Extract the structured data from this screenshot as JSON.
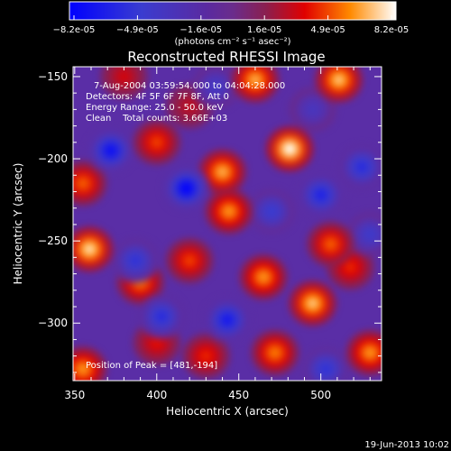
{
  "chart_data": {
    "type": "heatmap",
    "title": "Reconstructed RHESSI Image",
    "xlabel": "Heliocentric X (arcsec)",
    "ylabel": "Heliocentric Y (arcsec)",
    "xlim": [
      349,
      537
    ],
    "ylim": [
      -335,
      -144
    ],
    "x_ticks": [
      350,
      400,
      450,
      500
    ],
    "y_ticks": [
      -150,
      -200,
      -250,
      -300
    ],
    "colorbar": {
      "ticks": [
        "-8.2e-05",
        "-4.9e-05",
        "-1.6e-05",
        "1.6e-05",
        "4.9e-05",
        "8.2e-05"
      ],
      "units": "(photons cm⁻² s⁻¹ asec⁻²)",
      "range": [
        -8.2e-05,
        8.2e-05
      ]
    },
    "annotations": {
      "time": "7-Aug-2004 03:59:54.000 to 04:04:28.000",
      "detectors": "Detectors: 4F 5F 6F 7F 8F, Att 0",
      "energy": "Energy Range: 25.0 - 50.0 keV",
      "clean": "Clean    Total counts: 3.66E+03",
      "peak": "Position of Peak = [481,-194]"
    },
    "footer_date": "19-Jun-2013 10:02",
    "sources": [
      {
        "x": 481,
        "y": -194,
        "value": 8.2e-05
      },
      {
        "x": 460,
        "y": -152,
        "value": 6.5e-05
      },
      {
        "x": 511,
        "y": -152,
        "value": 7e-05
      },
      {
        "x": 440,
        "y": -208,
        "value": 6.5e-05
      },
      {
        "x": 444,
        "y": -232,
        "value": 6e-05
      },
      {
        "x": 359,
        "y": -255,
        "value": 7.5e-05
      },
      {
        "x": 355,
        "y": -215,
        "value": 5e-05
      },
      {
        "x": 390,
        "y": -275,
        "value": 5.5e-05
      },
      {
        "x": 400,
        "y": -190,
        "value": 4.5e-05
      },
      {
        "x": 420,
        "y": -262,
        "value": 4.5e-05
      },
      {
        "x": 465,
        "y": -272,
        "value": 6e-05
      },
      {
        "x": 506,
        "y": -252,
        "value": 5e-05
      },
      {
        "x": 518,
        "y": -266,
        "value": 4e-05
      },
      {
        "x": 495,
        "y": -288,
        "value": 7e-05
      },
      {
        "x": 472,
        "y": -318,
        "value": 5.5e-05
      },
      {
        "x": 355,
        "y": -328,
        "value": 6e-05
      },
      {
        "x": 400,
        "y": -312,
        "value": 3.5e-05
      },
      {
        "x": 530,
        "y": -318,
        "value": 6e-05
      },
      {
        "x": 430,
        "y": -320,
        "value": 4e-05
      },
      {
        "x": 380,
        "y": -150,
        "value": 3e-05
      },
      {
        "x": 420,
        "y": -168,
        "value": 2.5e-05
      },
      {
        "x": 372,
        "y": -195,
        "value": -7.5e-05
      },
      {
        "x": 418,
        "y": -218,
        "value": -8.2e-05
      },
      {
        "x": 387,
        "y": -262,
        "value": -5.5e-05
      },
      {
        "x": 470,
        "y": -232,
        "value": -5e-05
      },
      {
        "x": 443,
        "y": -298,
        "value": -7e-05
      },
      {
        "x": 403,
        "y": -296,
        "value": -6e-05
      },
      {
        "x": 500,
        "y": -222,
        "value": -6.5e-05
      },
      {
        "x": 525,
        "y": -205,
        "value": -6e-05
      },
      {
        "x": 503,
        "y": -328,
        "value": -5.5e-05
      },
      {
        "x": 530,
        "y": -246,
        "value": -4.5e-05
      },
      {
        "x": 436,
        "y": -156,
        "value": -4e-05
      },
      {
        "x": 495,
        "y": -170,
        "value": -3.5e-05
      }
    ]
  }
}
